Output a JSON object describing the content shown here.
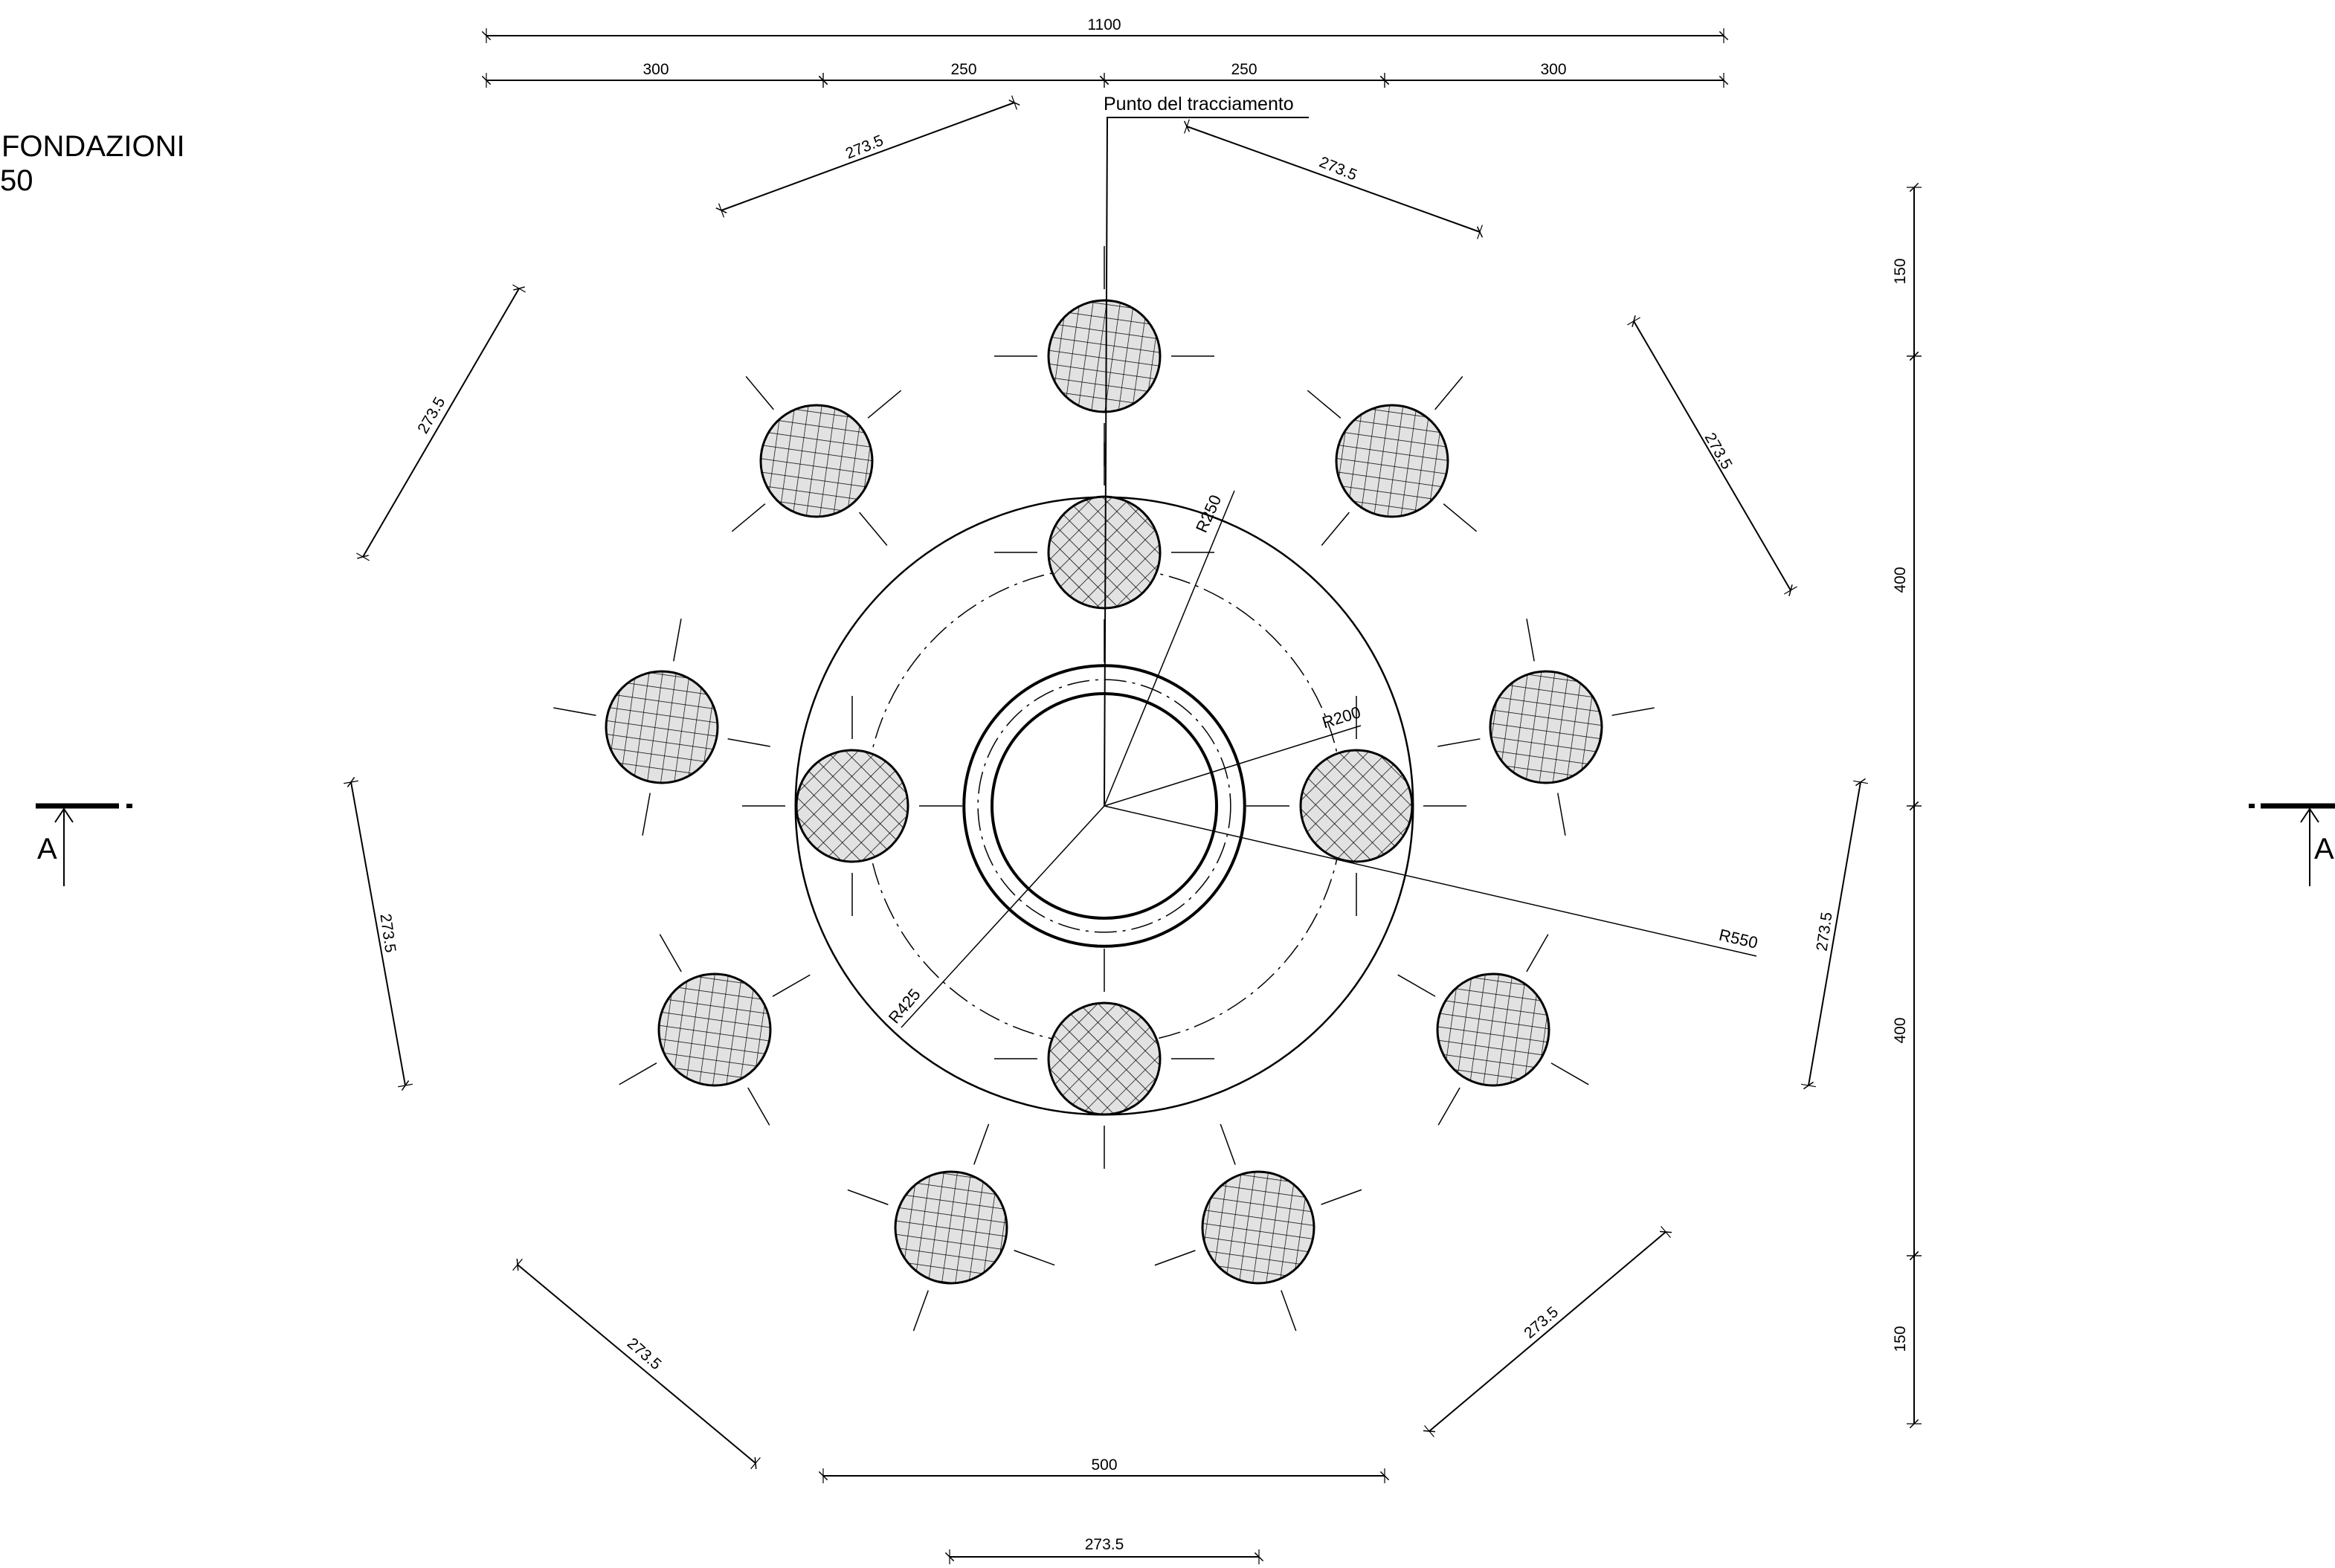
{
  "title": {
    "line1": "FONDAZIONI",
    "line2": "50"
  },
  "note": {
    "label": "Punto del tracciamento"
  },
  "dimensions": {
    "top_total": "1100",
    "top_seg_1": "300",
    "top_seg_2": "250",
    "top_seg_3": "250",
    "top_seg_4": "300",
    "chord": "273.5",
    "bottom_width": "500",
    "right_top": "150",
    "right_upper": "400",
    "right_lower": "400",
    "right_bottom": "150"
  },
  "radii": {
    "r_inner": "R200",
    "r_ring": "R250",
    "r_pile_circle": "R425",
    "r_outer": "R550"
  },
  "section": {
    "left_label": "A",
    "right_label": "A"
  },
  "colors": {
    "line": "#000000",
    "pile_fill": "#e2e2e2",
    "background": "#ffffff"
  }
}
